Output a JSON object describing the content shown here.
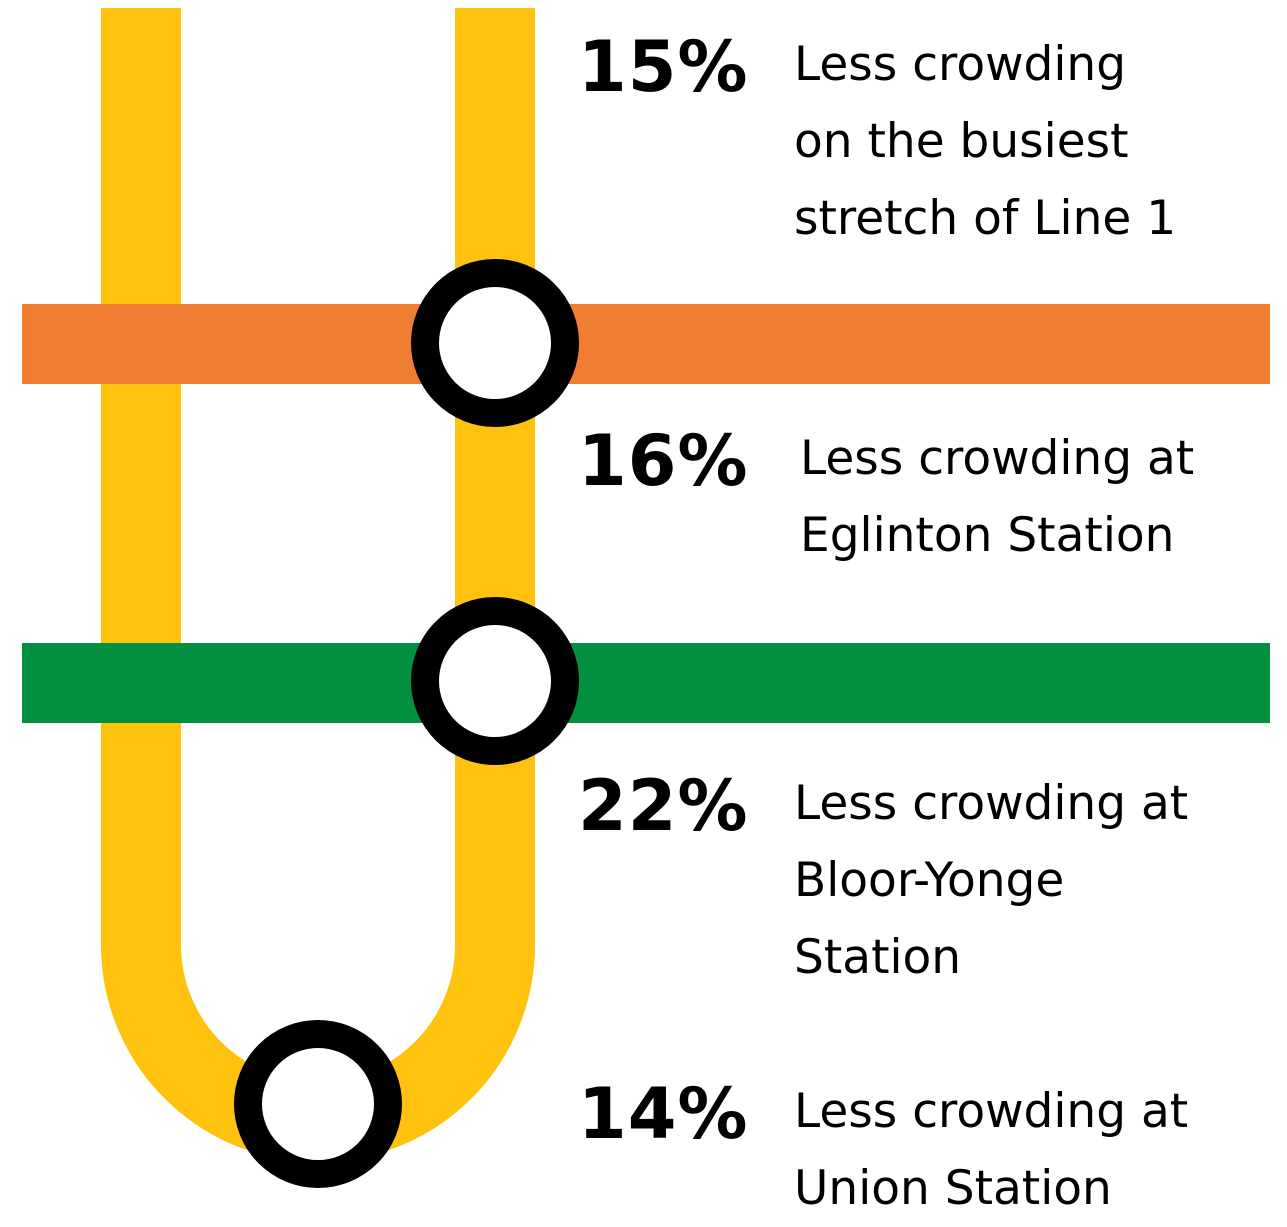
{
  "colors": {
    "line1": "#FFC20E",
    "line5_eglinton": "#EF7D32",
    "line2_bloor": "#009040",
    "station_ring": "#000000",
    "station_fill": "#FFFFFF"
  },
  "stats": [
    {
      "percent": "15%",
      "lines": [
        "Less crowding",
        "on the busiest",
        "stretch of Line 1"
      ]
    },
    {
      "percent": "16%",
      "lines": [
        "Less crowding at",
        "Eglinton Station"
      ]
    },
    {
      "percent": "22%",
      "lines": [
        "Less crowding at",
        "Bloor-Yonge",
        "Station"
      ]
    },
    {
      "percent": "14%",
      "lines": [
        "Less crowding at",
        "Union Station"
      ]
    }
  ]
}
